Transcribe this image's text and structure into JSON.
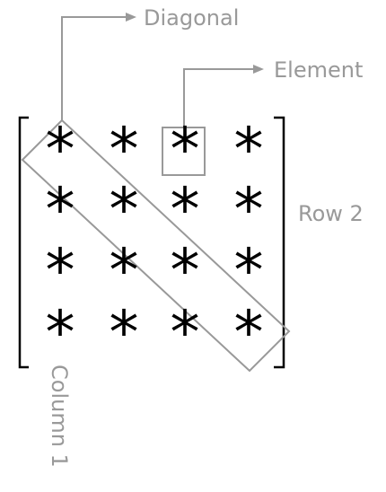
{
  "labels": {
    "diagonal": "Diagonal",
    "element": "Element",
    "row": "Row 2",
    "column": "Column 1"
  },
  "matrix": {
    "rows": 4,
    "columns": 4,
    "cells": [
      [
        "*",
        "*",
        "*",
        "*"
      ],
      [
        "*",
        "*",
        "*",
        "*"
      ],
      [
        "*",
        "*",
        "*",
        "*"
      ],
      [
        "*",
        "*",
        "*",
        "*"
      ]
    ]
  },
  "colors": {
    "annotation": "#999999",
    "matrix": "#000000",
    "background": "#ffffff"
  }
}
